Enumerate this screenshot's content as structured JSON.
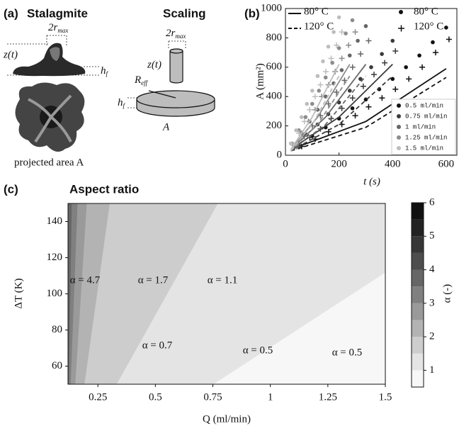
{
  "panel_a": {
    "label": "(a)",
    "title": "Stalagmite",
    "scaling_title": "Scaling",
    "radius": {
      "main": "2r",
      "sub": "max"
    },
    "height": "z(t)",
    "film": {
      "main": "h",
      "sub": "f"
    },
    "caption": "projected area A",
    "scaling_radius": {
      "main": "2r",
      "sub": "max"
    },
    "scaling_height": "z(t)",
    "scaling_reff": {
      "main": "R",
      "sub": "eff"
    },
    "scaling_film": {
      "main": "h",
      "sub": "f"
    },
    "scaling_area": "A"
  },
  "chart_data": [
    {
      "type": "scatter",
      "panel_label": "(b)",
      "x_label": "t (s)",
      "y_label": "A (mm²)",
      "xlim": [
        0,
        640
      ],
      "xticks": [
        0,
        200,
        400,
        600
      ],
      "ylim": [
        0,
        1000
      ],
      "yticks": [
        0,
        200,
        400,
        600,
        800,
        1000
      ],
      "series": [
        {
          "name": "0.5 ml/min",
          "color": "#111111",
          "x": [
            50,
            100,
            150,
            200,
            250,
            300,
            350,
            400,
            450,
            500,
            550,
            600
          ],
          "values": [
            70,
            130,
            190,
            250,
            320,
            380,
            450,
            520,
            600,
            680,
            770,
            870
          ],
          "values_120": [
            60,
            110,
            160,
            210,
            270,
            330,
            390,
            450,
            520,
            600,
            700,
            790
          ],
          "model_x": [
            20,
            300,
            600
          ],
          "model_80": [
            40,
            230,
            590
          ],
          "model_120": [
            30,
            190,
            530
          ]
        },
        {
          "name": "0.75 ml/min",
          "color": "#3a3a3a",
          "x": [
            40,
            80,
            120,
            160,
            200,
            240,
            280,
            320,
            360,
            400
          ],
          "values": [
            70,
            140,
            210,
            280,
            360,
            440,
            520,
            600,
            690,
            780
          ],
          "values_120": [
            60,
            120,
            180,
            250,
            320,
            390,
            470,
            550,
            630,
            710
          ],
          "model_x": [
            20,
            200,
            400
          ],
          "model_80": [
            40,
            260,
            620
          ],
          "model_120": [
            30,
            210,
            540
          ]
        },
        {
          "name": "1 ml/min",
          "color": "#666666",
          "x": [
            30,
            60,
            90,
            120,
            150,
            180,
            210,
            240,
            270,
            300
          ],
          "values": [
            70,
            150,
            230,
            310,
            400,
            490,
            580,
            680,
            780,
            880
          ],
          "values_120": [
            60,
            130,
            200,
            270,
            350,
            430,
            510,
            600,
            690,
            780
          ],
          "model_x": [
            20,
            150,
            300
          ],
          "model_80": [
            40,
            260,
            620
          ],
          "model_120": [
            30,
            210,
            540
          ]
        },
        {
          "name": "1.25 ml/min",
          "color": "#8c8c8c",
          "x": [
            25,
            50,
            75,
            100,
            125,
            150,
            175,
            200,
            225,
            250
          ],
          "values": [
            80,
            170,
            260,
            350,
            440,
            530,
            630,
            730,
            830,
            920
          ],
          "values_120": [
            70,
            150,
            230,
            310,
            400,
            480,
            570,
            660,
            750,
            840
          ],
          "model_x": [
            20,
            120,
            240
          ],
          "model_80": [
            40,
            260,
            620
          ],
          "model_120": [
            30,
            210,
            540
          ]
        },
        {
          "name": "1.5 ml/min",
          "color": "#bdbdbd",
          "x": [
            20,
            40,
            60,
            80,
            100,
            120,
            140,
            160,
            180,
            200
          ],
          "values": [
            80,
            170,
            260,
            350,
            440,
            540,
            640,
            740,
            840,
            940
          ],
          "values_120": [
            70,
            150,
            230,
            310,
            400,
            480,
            570,
            660,
            750,
            840
          ],
          "model_x": [
            20,
            100,
            200
          ],
          "model_80": [
            40,
            260,
            620
          ],
          "model_120": [
            30,
            210,
            540
          ]
        }
      ],
      "style_legend": [
        {
          "label": "80° C",
          "style": "solid"
        },
        {
          "label": "120° C",
          "style": "dashed"
        },
        {
          "label": "80° C",
          "style": "dot"
        },
        {
          "label": "120° C",
          "style": "cross"
        }
      ]
    },
    {
      "type": "contour",
      "panel_label": "(c)",
      "title": "Aspect ratio",
      "x_label": "Q (ml/min)",
      "y_label": "ΔT (K)",
      "xlim": [
        0.12,
        1.5
      ],
      "xticks": [
        0.25,
        0.5,
        0.75,
        1,
        1.25,
        1.5
      ],
      "ylim": [
        50,
        150
      ],
      "yticks": [
        60,
        80,
        100,
        120,
        140
      ],
      "contours": [
        {
          "level": 1,
          "x": [
            0.75,
            1.5
          ],
          "y": [
            50,
            112
          ]
        },
        {
          "level": 1.5,
          "x": [
            0.33,
            0.77
          ],
          "y": [
            50,
            150
          ]
        },
        {
          "level": 2,
          "x": [
            0.19,
            0.3
          ],
          "y": [
            50,
            150
          ]
        },
        {
          "level": 2.5,
          "x": [
            0.15,
            0.2
          ],
          "y": [
            50,
            150
          ]
        },
        {
          "level": 3,
          "x": [
            0.13,
            0.16
          ],
          "y": [
            50,
            150
          ]
        },
        {
          "level": 3.5,
          "x": [
            0.122,
            0.135
          ],
          "y": [
            50,
            150
          ]
        }
      ],
      "colorbar": {
        "label": "α (-)",
        "lim": [
          0.5,
          6
        ],
        "ticks": [
          1,
          2,
          3,
          4,
          5,
          6
        ],
        "levels": [
          0.5,
          1,
          1.5,
          2,
          2.5,
          3,
          3.5,
          4,
          4.5,
          5,
          5.5,
          6
        ],
        "colors": [
          "#f7f7f7",
          "#e4e4e4",
          "#cdcdcd",
          "#b3b3b3",
          "#9a9a9a",
          "#808080",
          "#666666",
          "#4d4d4d",
          "#363636",
          "#222222",
          "#111111"
        ]
      },
      "annotations": [
        "α = 4.7",
        "α = 1.7",
        "α = 1.1",
        "α = 0.7",
        "α = 0.5",
        "α = 0.5"
      ]
    }
  ]
}
